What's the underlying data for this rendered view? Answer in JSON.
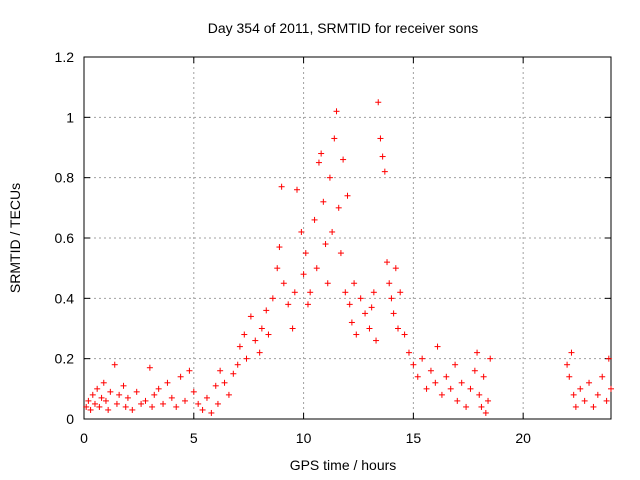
{
  "chart_data": {
    "type": "scatter",
    "title": "Day 354 of 2011, SRMTID for receiver sons",
    "xlabel": "GPS time / hours",
    "ylabel": "SRMTID / TECUs",
    "xlim": [
      0,
      24
    ],
    "ylim": [
      0,
      1.2
    ],
    "xticks": [
      0,
      5,
      10,
      15,
      20
    ],
    "yticks": [
      0,
      0.2,
      0.4,
      0.6,
      0.8,
      1,
      1.2
    ],
    "xtick_labels": [
      "0",
      "5",
      "10",
      "15",
      "20"
    ],
    "ytick_labels": [
      "0",
      "0.2",
      "0.4",
      "0.6",
      "0.8",
      "1",
      "1.2"
    ],
    "grid": true,
    "marker": "plus",
    "color": "#ff0000",
    "series": [
      {
        "name": "SRMTID",
        "points": [
          [
            0.1,
            0.04
          ],
          [
            0.2,
            0.06
          ],
          [
            0.3,
            0.03
          ],
          [
            0.4,
            0.08
          ],
          [
            0.5,
            0.05
          ],
          [
            0.6,
            0.1
          ],
          [
            0.7,
            0.04
          ],
          [
            0.8,
            0.07
          ],
          [
            0.9,
            0.12
          ],
          [
            1.0,
            0.06
          ],
          [
            1.1,
            0.03
          ],
          [
            1.2,
            0.09
          ],
          [
            1.4,
            0.18
          ],
          [
            1.5,
            0.05
          ],
          [
            1.6,
            0.08
          ],
          [
            1.8,
            0.11
          ],
          [
            1.9,
            0.04
          ],
          [
            2.0,
            0.07
          ],
          [
            2.2,
            0.03
          ],
          [
            2.4,
            0.09
          ],
          [
            2.6,
            0.05
          ],
          [
            2.8,
            0.06
          ],
          [
            3.0,
            0.17
          ],
          [
            3.1,
            0.04
          ],
          [
            3.2,
            0.08
          ],
          [
            3.4,
            0.1
          ],
          [
            3.6,
            0.05
          ],
          [
            3.8,
            0.12
          ],
          [
            4.0,
            0.07
          ],
          [
            4.2,
            0.04
          ],
          [
            4.4,
            0.14
          ],
          [
            4.6,
            0.06
          ],
          [
            4.8,
            0.16
          ],
          [
            5.0,
            0.09
          ],
          [
            5.2,
            0.05
          ],
          [
            5.4,
            0.03
          ],
          [
            5.6,
            0.07
          ],
          [
            5.8,
            0.02
          ],
          [
            6.0,
            0.11
          ],
          [
            6.1,
            0.05
          ],
          [
            6.2,
            0.16
          ],
          [
            6.4,
            0.12
          ],
          [
            6.6,
            0.08
          ],
          [
            6.8,
            0.15
          ],
          [
            7.0,
            0.18
          ],
          [
            7.1,
            0.24
          ],
          [
            7.3,
            0.28
          ],
          [
            7.4,
            0.2
          ],
          [
            7.6,
            0.34
          ],
          [
            7.8,
            0.26
          ],
          [
            8.0,
            0.22
          ],
          [
            8.1,
            0.3
          ],
          [
            8.3,
            0.36
          ],
          [
            8.4,
            0.28
          ],
          [
            8.6,
            0.4
          ],
          [
            8.8,
            0.5
          ],
          [
            8.9,
            0.57
          ],
          [
            9.0,
            0.77
          ],
          [
            9.1,
            0.45
          ],
          [
            9.3,
            0.38
          ],
          [
            9.5,
            0.3
          ],
          [
            9.6,
            0.42
          ],
          [
            9.7,
            0.76
          ],
          [
            9.9,
            0.62
          ],
          [
            10.0,
            0.48
          ],
          [
            10.1,
            0.55
          ],
          [
            10.2,
            0.38
          ],
          [
            10.3,
            0.42
          ],
          [
            10.5,
            0.66
          ],
          [
            10.6,
            0.5
          ],
          [
            10.7,
            0.85
          ],
          [
            10.8,
            0.88
          ],
          [
            10.9,
            0.72
          ],
          [
            11.0,
            0.58
          ],
          [
            11.1,
            0.45
          ],
          [
            11.2,
            0.8
          ],
          [
            11.3,
            0.62
          ],
          [
            11.4,
            0.93
          ],
          [
            11.5,
            1.02
          ],
          [
            11.6,
            0.7
          ],
          [
            11.7,
            0.55
          ],
          [
            11.8,
            0.86
          ],
          [
            11.9,
            0.42
          ],
          [
            12.0,
            0.74
          ],
          [
            12.1,
            0.38
          ],
          [
            12.2,
            0.32
          ],
          [
            12.3,
            0.45
          ],
          [
            12.4,
            0.28
          ],
          [
            12.6,
            0.4
          ],
          [
            12.8,
            0.35
          ],
          [
            13.0,
            0.3
          ],
          [
            13.1,
            0.37
          ],
          [
            13.2,
            0.42
          ],
          [
            13.3,
            0.26
          ],
          [
            13.4,
            1.05
          ],
          [
            13.5,
            0.93
          ],
          [
            13.6,
            0.87
          ],
          [
            13.7,
            0.82
          ],
          [
            13.8,
            0.52
          ],
          [
            13.9,
            0.45
          ],
          [
            14.0,
            0.4
          ],
          [
            14.1,
            0.35
          ],
          [
            14.2,
            0.5
          ],
          [
            14.3,
            0.3
          ],
          [
            14.4,
            0.42
          ],
          [
            14.6,
            0.28
          ],
          [
            14.8,
            0.22
          ],
          [
            15.0,
            0.18
          ],
          [
            15.2,
            0.14
          ],
          [
            15.4,
            0.2
          ],
          [
            15.6,
            0.1
          ],
          [
            15.8,
            0.16
          ],
          [
            16.0,
            0.12
          ],
          [
            16.1,
            0.24
          ],
          [
            16.3,
            0.08
          ],
          [
            16.5,
            0.14
          ],
          [
            16.7,
            0.1
          ],
          [
            16.9,
            0.18
          ],
          [
            17.0,
            0.06
          ],
          [
            17.2,
            0.12
          ],
          [
            17.4,
            0.04
          ],
          [
            17.6,
            0.1
          ],
          [
            17.8,
            0.16
          ],
          [
            17.9,
            0.22
          ],
          [
            18.0,
            0.08
          ],
          [
            18.1,
            0.04
          ],
          [
            18.2,
            0.14
          ],
          [
            18.3,
            0.02
          ],
          [
            18.4,
            0.06
          ],
          [
            18.5,
            0.2
          ],
          [
            22.0,
            0.18
          ],
          [
            22.1,
            0.14
          ],
          [
            22.2,
            0.22
          ],
          [
            22.3,
            0.08
          ],
          [
            22.4,
            0.04
          ],
          [
            22.6,
            0.1
          ],
          [
            22.8,
            0.06
          ],
          [
            23.0,
            0.12
          ],
          [
            23.2,
            0.04
          ],
          [
            23.4,
            0.08
          ],
          [
            23.6,
            0.14
          ],
          [
            23.8,
            0.06
          ],
          [
            23.9,
            0.2
          ],
          [
            24.0,
            0.1
          ]
        ]
      }
    ]
  }
}
